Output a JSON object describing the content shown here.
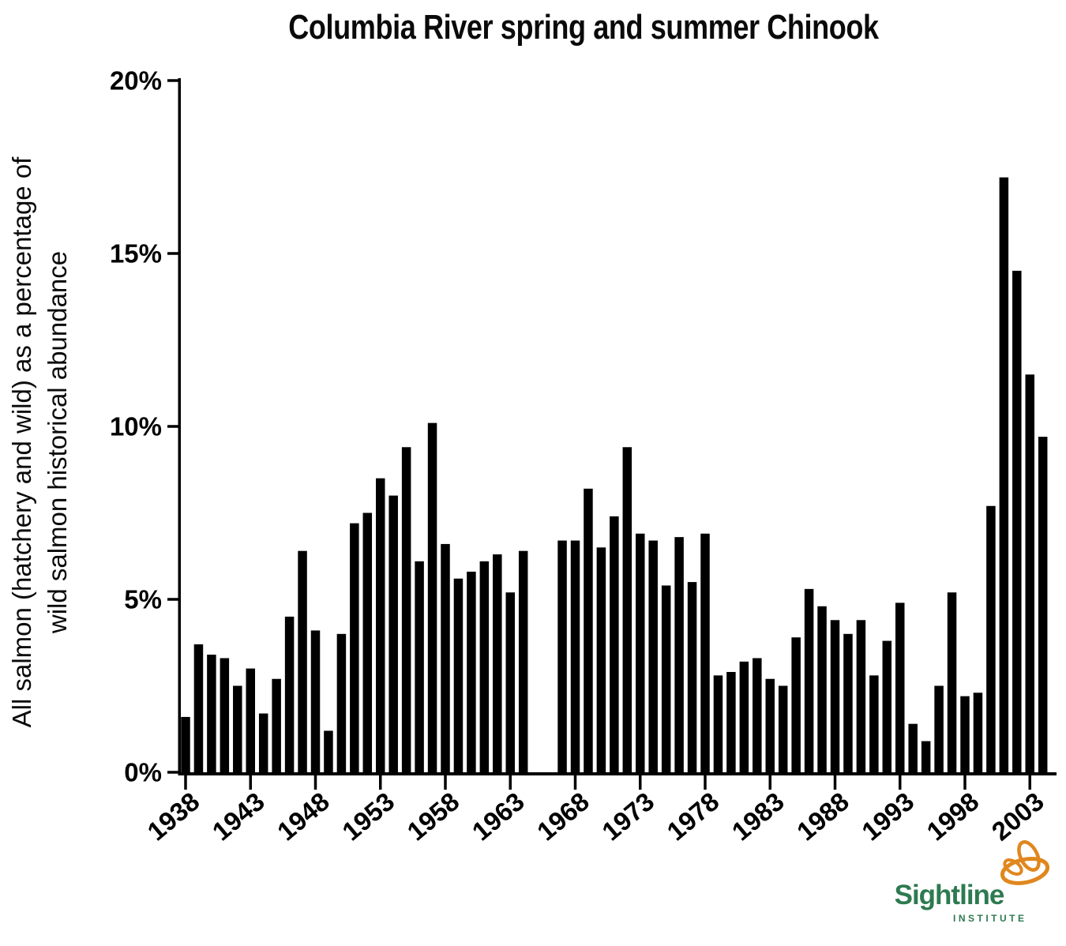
{
  "chart_data": {
    "type": "bar",
    "title": "Columbia River spring and summer Chinook",
    "ylabel_lines": [
      "All salmon (hatchery and wild) as a percentage of",
      "wild salmon historical abundance"
    ],
    "xlabel": "",
    "x": [
      1938,
      1939,
      1940,
      1941,
      1942,
      1943,
      1944,
      1945,
      1946,
      1947,
      1948,
      1949,
      1950,
      1951,
      1952,
      1953,
      1954,
      1955,
      1956,
      1957,
      1958,
      1959,
      1960,
      1961,
      1962,
      1963,
      1964,
      1967,
      1968,
      1969,
      1970,
      1971,
      1972,
      1973,
      1974,
      1975,
      1976,
      1977,
      1978,
      1979,
      1980,
      1981,
      1982,
      1983,
      1984,
      1985,
      1986,
      1987,
      1988,
      1989,
      1990,
      1991,
      1992,
      1993,
      1994,
      1995,
      1996,
      1997,
      1998,
      1999,
      2000,
      2001,
      2002,
      2003,
      2004
    ],
    "values": [
      1.6,
      3.7,
      3.4,
      3.3,
      2.5,
      3.0,
      1.7,
      2.7,
      4.5,
      6.4,
      4.1,
      1.2,
      4.0,
      7.2,
      7.5,
      8.5,
      8.0,
      9.4,
      6.1,
      10.1,
      6.6,
      5.6,
      5.8,
      6.1,
      6.3,
      5.2,
      6.4,
      6.7,
      6.7,
      8.2,
      6.5,
      7.4,
      9.4,
      6.9,
      6.7,
      5.4,
      6.8,
      5.5,
      6.9,
      2.8,
      2.9,
      3.2,
      3.3,
      2.7,
      2.5,
      3.9,
      5.3,
      4.8,
      4.4,
      4.0,
      4.4,
      2.8,
      3.8,
      4.9,
      1.4,
      0.9,
      2.5,
      5.2,
      2.2,
      2.3,
      7.7,
      17.2,
      14.5,
      11.5,
      9.7
    ],
    "missing_years": [
      1965,
      1966
    ],
    "xtick_years": [
      1938,
      1943,
      1948,
      1953,
      1958,
      1963,
      1968,
      1973,
      1978,
      1983,
      1988,
      1993,
      1998,
      2003
    ],
    "ytick_values": [
      0,
      5,
      10,
      15,
      20
    ],
    "ytick_labels": [
      "0%",
      "5%",
      "10%",
      "15%",
      "20%"
    ],
    "ylim": [
      0,
      20
    ],
    "grid": false,
    "legend": null,
    "bar_color": "#000000",
    "axis_color": "#000000"
  },
  "logo": {
    "brand": "Sightline",
    "subtitle": "INSTITUTE",
    "text_color": "#2e7a50",
    "mark_color": "#e0871e"
  }
}
